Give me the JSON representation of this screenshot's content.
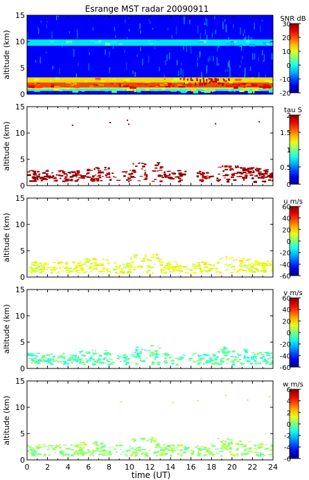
{
  "chart_data": [
    {
      "type": "heatmap",
      "title": "Esrange MST radar 20090911",
      "ylabel": "altitude (km)",
      "ylim": [
        0,
        15
      ],
      "yticks": [
        0,
        5,
        10,
        15
      ],
      "xlim": [
        0,
        24
      ],
      "colorbar": {
        "label": "SNR dB",
        "range": [
          -20,
          30
        ],
        "ticks": [
          -20,
          -10,
          0,
          10,
          20,
          30
        ]
      },
      "layers": [
        {
          "altitude_km": [
            0.6,
            0.9
          ],
          "level": 0.45
        },
        {
          "altitude_km": [
            0.9,
            1.3
          ],
          "level": 0.55
        },
        {
          "altitude_km": [
            1.3,
            2.2
          ],
          "level": 0.8
        },
        {
          "altitude_km": [
            2.2,
            3.2
          ],
          "level": 0.65
        },
        {
          "altitude_km": [
            9.2,
            10.4
          ],
          "level": 0.36
        }
      ],
      "background_level": 0.12
    },
    {
      "type": "heatmap",
      "ylabel": "altitude (km)",
      "ylim": [
        0,
        15
      ],
      "yticks": [
        0,
        5,
        10,
        15
      ],
      "xlim": [
        0,
        24
      ],
      "colorbar": {
        "label": "tau S",
        "range": [
          0,
          2
        ],
        "ticks": [
          0,
          0.5,
          1,
          1.5,
          2
        ]
      },
      "echo_level": 0.98
    },
    {
      "type": "heatmap",
      "ylabel": "altitude (km)",
      "ylim": [
        0,
        15
      ],
      "yticks": [
        0,
        5,
        10,
        15
      ],
      "xlim": [
        0,
        24
      ],
      "colorbar": {
        "label": "u m/s",
        "range": [
          -60,
          60
        ],
        "ticks": [
          -60,
          -40,
          -20,
          0,
          20,
          40,
          60
        ]
      },
      "echo_level": 0.6
    },
    {
      "type": "heatmap",
      "ylabel": "altitude (km)",
      "ylim": [
        0,
        15
      ],
      "yticks": [
        0,
        5,
        10,
        15
      ],
      "xlim": [
        0,
        24
      ],
      "colorbar": {
        "label": "v m/s",
        "range": [
          -60,
          60
        ],
        "ticks": [
          -60,
          -40,
          -20,
          0,
          20,
          40,
          60
        ]
      },
      "echo_level": 0.46
    },
    {
      "type": "heatmap",
      "ylabel": "altitude (km)",
      "ylim": [
        0,
        15
      ],
      "yticks": [
        0,
        5,
        10,
        15
      ],
      "xlim": [
        0,
        24
      ],
      "xlabel": "time (UT)",
      "xticks": [
        0,
        2,
        4,
        6,
        8,
        10,
        12,
        14,
        16,
        18,
        20,
        22,
        24
      ],
      "colorbar": {
        "label": "w m/s",
        "range": [
          -6,
          6
        ],
        "ticks": [
          -6,
          -4,
          -2,
          0,
          2,
          4,
          6
        ]
      },
      "echo_level": 0.52
    }
  ]
}
